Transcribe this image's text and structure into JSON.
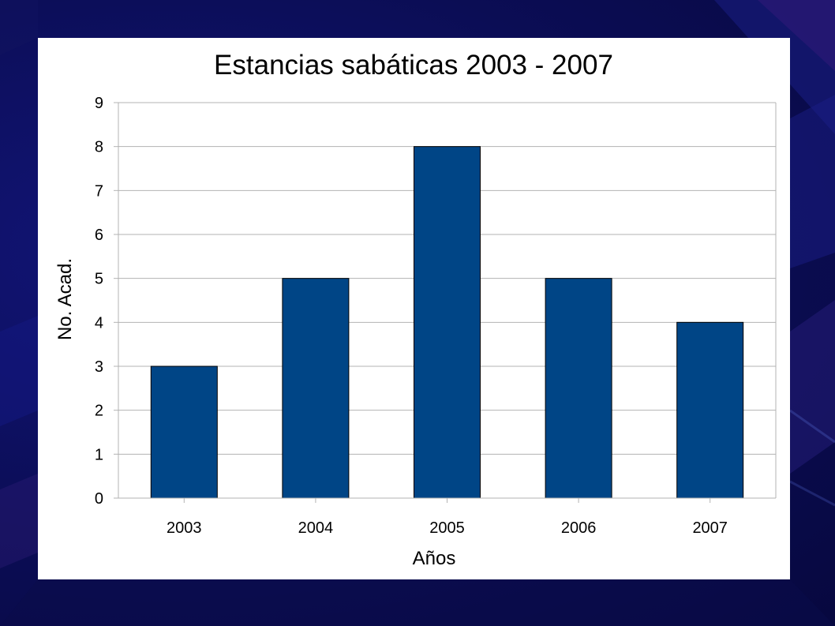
{
  "colors": {
    "background": "#0d0f5e",
    "panel": "#ffffff",
    "bar_fill": "#004586",
    "bar_stroke": "#000000",
    "gridline": "#b3b3b3"
  },
  "chart_data": {
    "type": "bar",
    "title": "Estancias sabáticas 2003 - 2007",
    "xlabel": "Años",
    "ylabel": "No. Acad.",
    "categories": [
      "2003",
      "2004",
      "2005",
      "2006",
      "2007"
    ],
    "values": [
      3,
      5,
      8,
      5,
      4
    ],
    "ylim": [
      0,
      9
    ],
    "yticks": [
      0,
      1,
      2,
      3,
      4,
      5,
      6,
      7,
      8,
      9
    ],
    "grid": true,
    "legend": "none"
  }
}
